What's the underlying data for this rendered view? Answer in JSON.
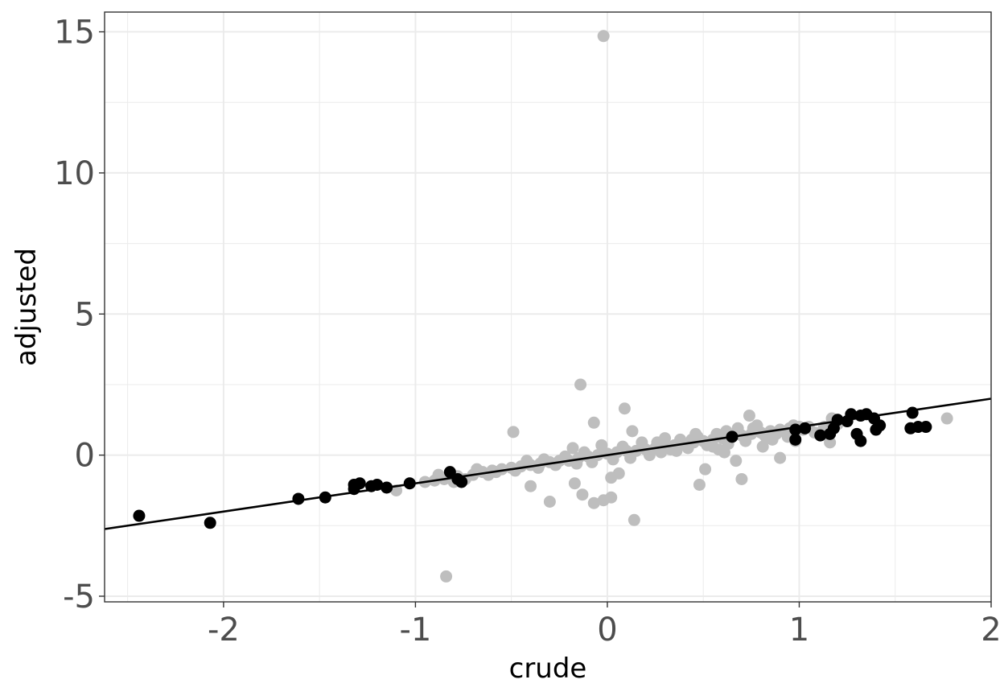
{
  "chart_data": {
    "type": "scatter",
    "title": "",
    "xlabel": "crude",
    "ylabel": "adjusted",
    "xlim": [
      -2.62,
      2.0
    ],
    "ylim": [
      -5.2,
      15.7
    ],
    "x_ticks": [
      -2,
      -1,
      0,
      1,
      2
    ],
    "x_tick_labels": [
      "-2",
      "-1",
      "0",
      "1",
      "2"
    ],
    "y_ticks": [
      -5,
      0,
      5,
      10,
      15
    ],
    "y_tick_labels": [
      "-5",
      "0",
      "5",
      "10",
      "15"
    ],
    "grid": true,
    "legend": "none",
    "colors": {
      "highlight": "#000000",
      "background_points": "#bebebe",
      "line": "#000000",
      "grid": "#ebebeb",
      "border": "#333333"
    },
    "fit_line": {
      "slope": 1.0,
      "intercept": 0.0
    },
    "series": [
      {
        "color": "#bebebe",
        "points": [
          [
            -0.02,
            14.85
          ],
          [
            -0.14,
            2.5
          ],
          [
            0.09,
            1.65
          ],
          [
            -0.49,
            0.82
          ],
          [
            -0.07,
            1.15
          ],
          [
            0.74,
            1.4
          ],
          [
            -0.84,
            -4.3
          ],
          [
            0.14,
            -2.3
          ],
          [
            -0.3,
            -1.65
          ],
          [
            -0.4,
            -1.1
          ],
          [
            -0.17,
            -1.0
          ],
          [
            -0.13,
            -1.4
          ],
          [
            -0.07,
            -1.7
          ],
          [
            -0.02,
            -1.6
          ],
          [
            0.02,
            -1.5
          ],
          [
            0.06,
            -0.65
          ],
          [
            0.02,
            -0.8
          ],
          [
            0.48,
            -1.05
          ],
          [
            0.51,
            -0.5
          ],
          [
            0.7,
            -0.85
          ],
          [
            0.67,
            -0.2
          ],
          [
            0.9,
            -0.1
          ],
          [
            0.61,
            0.1
          ],
          [
            0.81,
            0.3
          ],
          [
            0.98,
            0.5
          ],
          [
            1.16,
            0.45
          ],
          [
            1.12,
            0.85
          ],
          [
            1.17,
            1.3
          ],
          [
            1.77,
            1.3
          ],
          [
            0.13,
            0.85
          ],
          [
            0.3,
            0.6
          ],
          [
            0.46,
            0.75
          ],
          [
            0.55,
            0.3
          ],
          [
            -1.1,
            -1.25
          ],
          [
            -0.95,
            -0.95
          ],
          [
            -0.9,
            -0.9
          ],
          [
            -0.85,
            -0.85
          ],
          [
            -0.78,
            -0.75
          ],
          [
            -0.7,
            -0.7
          ],
          [
            -0.65,
            -0.6
          ],
          [
            -0.6,
            -0.55
          ],
          [
            -0.55,
            -0.5
          ],
          [
            -0.5,
            -0.45
          ],
          [
            -0.45,
            -0.4
          ],
          [
            -0.4,
            -0.35
          ],
          [
            -0.35,
            -0.3
          ],
          [
            -0.3,
            -0.25
          ],
          [
            -0.25,
            -0.2
          ],
          [
            -0.2,
            -0.2
          ],
          [
            -0.15,
            -0.1
          ],
          [
            -0.1,
            -0.05
          ],
          [
            -0.05,
            0.0
          ],
          [
            0.0,
            0.05
          ],
          [
            0.05,
            0.1
          ],
          [
            0.1,
            0.15
          ],
          [
            0.15,
            0.15
          ],
          [
            0.2,
            0.2
          ],
          [
            0.25,
            0.25
          ],
          [
            0.3,
            0.3
          ],
          [
            0.35,
            0.35
          ],
          [
            0.4,
            0.4
          ],
          [
            0.45,
            0.45
          ],
          [
            0.5,
            0.5
          ],
          [
            0.55,
            0.55
          ],
          [
            0.6,
            0.6
          ],
          [
            0.65,
            0.65
          ],
          [
            0.7,
            0.7
          ],
          [
            0.75,
            0.75
          ],
          [
            0.8,
            0.8
          ],
          [
            0.85,
            0.85
          ],
          [
            0.9,
            0.9
          ],
          [
            0.95,
            0.95
          ],
          [
            1.0,
            1.0
          ],
          [
            1.05,
            1.0
          ],
          [
            -0.68,
            -0.5
          ],
          [
            -0.62,
            -0.7
          ],
          [
            -0.58,
            -0.6
          ],
          [
            -0.48,
            -0.55
          ],
          [
            -0.42,
            -0.2
          ],
          [
            -0.33,
            -0.15
          ],
          [
            -0.27,
            -0.35
          ],
          [
            -0.22,
            -0.05
          ],
          [
            -0.18,
            0.25
          ],
          [
            -0.12,
            0.1
          ],
          [
            -0.08,
            -0.25
          ],
          [
            -0.03,
            0.35
          ],
          [
            0.03,
            -0.15
          ],
          [
            0.08,
            0.3
          ],
          [
            0.12,
            -0.1
          ],
          [
            0.18,
            0.45
          ],
          [
            0.22,
            0.0
          ],
          [
            0.28,
            0.1
          ],
          [
            0.33,
            0.2
          ],
          [
            0.38,
            0.55
          ],
          [
            0.42,
            0.25
          ],
          [
            0.47,
            0.65
          ],
          [
            0.52,
            0.35
          ],
          [
            0.57,
            0.75
          ],
          [
            0.63,
            0.4
          ],
          [
            0.68,
            0.95
          ],
          [
            0.72,
            0.5
          ],
          [
            0.78,
            1.05
          ],
          [
            0.83,
            0.6
          ],
          [
            0.88,
            0.75
          ],
          [
            0.93,
            0.8
          ],
          [
            0.97,
            1.05
          ],
          [
            1.08,
            0.8
          ],
          [
            1.13,
            1.0
          ],
          [
            1.2,
            1.1
          ],
          [
            -0.88,
            -0.7
          ],
          [
            -0.8,
            -0.95
          ],
          [
            -0.74,
            -0.85
          ],
          [
            -0.36,
            -0.45
          ],
          [
            -0.16,
            -0.3
          ],
          [
            0.26,
            0.45
          ],
          [
            0.36,
            0.15
          ],
          [
            0.44,
            0.55
          ],
          [
            0.58,
            0.2
          ],
          [
            0.62,
            0.85
          ],
          [
            0.76,
            0.95
          ],
          [
            0.82,
            0.7
          ],
          [
            0.86,
            0.55
          ],
          [
            0.94,
            0.65
          ],
          [
            1.02,
            0.9
          ]
        ]
      },
      {
        "color": "#000000",
        "points": [
          [
            -2.44,
            -2.15
          ],
          [
            -2.07,
            -2.4
          ],
          [
            -1.61,
            -1.55
          ],
          [
            -1.47,
            -1.5
          ],
          [
            -1.32,
            -1.2
          ],
          [
            -1.32,
            -1.05
          ],
          [
            -1.29,
            -1.0
          ],
          [
            -1.23,
            -1.1
          ],
          [
            -1.2,
            -1.05
          ],
          [
            -1.15,
            -1.15
          ],
          [
            -1.03,
            -1.0
          ],
          [
            -0.82,
            -0.6
          ],
          [
            -0.78,
            -0.85
          ],
          [
            -0.76,
            -0.95
          ],
          [
            0.65,
            0.65
          ],
          [
            0.98,
            0.55
          ],
          [
            0.98,
            0.9
          ],
          [
            1.03,
            0.95
          ],
          [
            1.11,
            0.7
          ],
          [
            1.16,
            0.75
          ],
          [
            1.18,
            0.95
          ],
          [
            1.2,
            1.25
          ],
          [
            1.25,
            1.2
          ],
          [
            1.27,
            1.45
          ],
          [
            1.3,
            0.75
          ],
          [
            1.32,
            0.5
          ],
          [
            1.32,
            1.4
          ],
          [
            1.35,
            1.45
          ],
          [
            1.39,
            1.3
          ],
          [
            1.4,
            0.9
          ],
          [
            1.42,
            1.05
          ],
          [
            1.58,
            0.95
          ],
          [
            1.59,
            1.5
          ],
          [
            1.62,
            1.0
          ],
          [
            1.66,
            1.0
          ]
        ]
      }
    ]
  }
}
